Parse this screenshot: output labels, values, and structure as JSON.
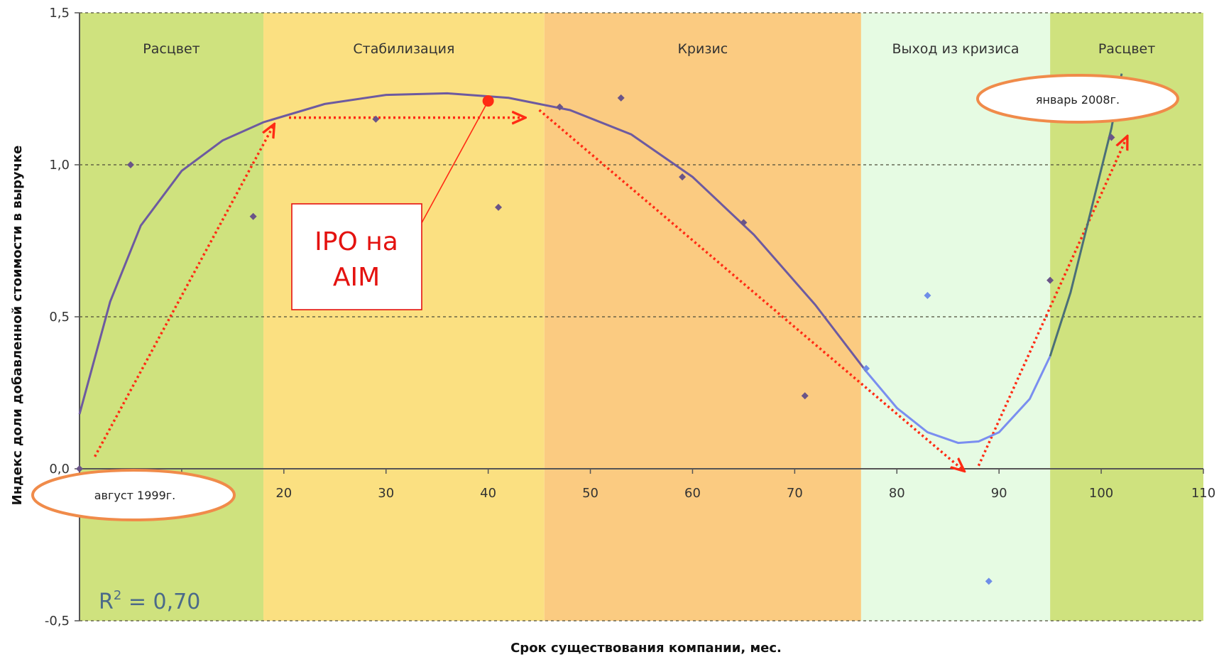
{
  "chart_data": {
    "type": "scatter",
    "xlabel": "Срок существования компании, мес.",
    "ylabel": "Индекс доли добавленной стоимости в выручке",
    "xlim": [
      0,
      110
    ],
    "ylim": [
      -0.5,
      1.5
    ],
    "x_ticks": [
      "20",
      "30",
      "40",
      "50",
      "60",
      "70",
      "80",
      "90",
      "100",
      "110"
    ],
    "y_ticks": [
      "-0,5",
      "0,0",
      "0,5",
      "1,0",
      "1,5"
    ],
    "grid": "horizontal dashed",
    "phases": [
      {
        "label": "Расцвет",
        "from": 0,
        "to": 18,
        "color": "#cfe27e"
      },
      {
        "label": "Стабилизация",
        "from": 18,
        "to": 45.5,
        "color": "#fbe081"
      },
      {
        "label": "Кризис",
        "from": 45.5,
        "to": 76.5,
        "color": "#fbcb81"
      },
      {
        "label": "Выход из кризиса",
        "from": 76.5,
        "to": 95,
        "color": "#e6fbe3"
      },
      {
        "label": "Расцвет",
        "from": 95,
        "to": 110,
        "color": "#cfe27e"
      }
    ],
    "points_dark": [
      {
        "x": 0,
        "y": 0.0
      },
      {
        "x": 5,
        "y": 1.0
      },
      {
        "x": 17,
        "y": 0.83
      },
      {
        "x": 29,
        "y": 1.15
      },
      {
        "x": 41,
        "y": 0.86
      },
      {
        "x": 47,
        "y": 1.19
      },
      {
        "x": 53,
        "y": 1.22
      },
      {
        "x": 59,
        "y": 0.96
      },
      {
        "x": 65,
        "y": 0.81
      },
      {
        "x": 71,
        "y": 0.24
      },
      {
        "x": 95,
        "y": 0.62
      },
      {
        "x": 101,
        "y": 1.09
      }
    ],
    "points_light": [
      {
        "x": 77,
        "y": 0.33
      },
      {
        "x": 83,
        "y": 0.57
      },
      {
        "x": 89,
        "y": -0.37
      }
    ],
    "trend_dark": [
      {
        "x": 0,
        "y": 0.18
      },
      {
        "x": 3,
        "y": 0.55
      },
      {
        "x": 6,
        "y": 0.8
      },
      {
        "x": 10,
        "y": 0.98
      },
      {
        "x": 14,
        "y": 1.08
      },
      {
        "x": 18,
        "y": 1.14
      },
      {
        "x": 24,
        "y": 1.2
      },
      {
        "x": 30,
        "y": 1.23
      },
      {
        "x": 36,
        "y": 1.235
      },
      {
        "x": 42,
        "y": 1.22
      },
      {
        "x": 48,
        "y": 1.18
      },
      {
        "x": 54,
        "y": 1.1
      },
      {
        "x": 60,
        "y": 0.96
      },
      {
        "x": 66,
        "y": 0.77
      },
      {
        "x": 72,
        "y": 0.54
      },
      {
        "x": 77,
        "y": 0.32
      }
    ],
    "trend_light": [
      {
        "x": 77,
        "y": 0.32
      },
      {
        "x": 80,
        "y": 0.2
      },
      {
        "x": 83,
        "y": 0.12
      },
      {
        "x": 86,
        "y": 0.085
      },
      {
        "x": 88,
        "y": 0.09
      },
      {
        "x": 90,
        "y": 0.12
      },
      {
        "x": 93,
        "y": 0.23
      },
      {
        "x": 95,
        "y": 0.37
      }
    ],
    "trend_steep": [
      {
        "x": 95,
        "y": 0.37
      },
      {
        "x": 97,
        "y": 0.58
      },
      {
        "x": 99,
        "y": 0.85
      },
      {
        "x": 101,
        "y": 1.12
      },
      {
        "x": 102,
        "y": 1.3
      }
    ],
    "arrows": [
      {
        "from": [
          1.5,
          0.04
        ],
        "to": [
          19,
          1.13
        ]
      },
      {
        "from": [
          20.5,
          1.155
        ],
        "to": [
          43.5,
          1.155
        ]
      },
      {
        "from": [
          45,
          1.18
        ],
        "to": [
          86.5,
          -0.005
        ]
      },
      {
        "from": [
          88,
          0.01
        ],
        "to": [
          102.5,
          1.09
        ]
      }
    ],
    "ipo_point": {
      "x": 40,
      "y": 1.21
    },
    "colors": {
      "dark_points": "#6a5488",
      "light_points": "#6f8ee8",
      "trend_dark": "#6d5aa0",
      "trend_light": "#7a8ef0",
      "trend_steep": "#4b6f78",
      "arrows": "#ff2b14",
      "ipo": "#ff2b14",
      "callout_border": "#f08b4a"
    },
    "annotations": {
      "start_label": "август 1999г.",
      "end_label": "январь 2008г.",
      "ipo_line1": "IPO на",
      "ipo_line2": "AIM",
      "r2_prefix": "R",
      "r2_exp": "2",
      "r2_value": " = 0,70"
    }
  }
}
